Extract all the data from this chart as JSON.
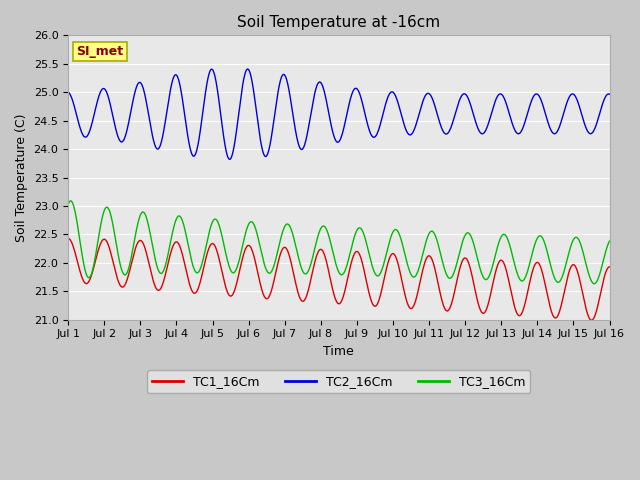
{
  "title": "Soil Temperature at -16cm",
  "xlabel": "Time",
  "ylabel": "Soil Temperature (C)",
  "ylim": [
    21.0,
    26.0
  ],
  "xlim": [
    0,
    15
  ],
  "xtick_labels": [
    "Jul 1",
    "Jul 2",
    "Jul 3",
    "Jul 4",
    "Jul 5",
    "Jul 6",
    "Jul 7",
    "Jul 8",
    "Jul 9",
    "Jul 10",
    "Jul 11",
    "Jul 12",
    "Jul 13",
    "Jul 14",
    "Jul 15",
    "Jul 16"
  ],
  "ytick_values": [
    21.0,
    21.5,
    22.0,
    22.5,
    23.0,
    23.5,
    24.0,
    24.5,
    25.0,
    25.5,
    26.0
  ],
  "ytick_labels": [
    "21.0",
    "21.5",
    "22.0",
    "22.5",
    "23.0",
    "23.5",
    "24.0",
    "24.5",
    "25.0",
    "25.5",
    "26.0"
  ],
  "colors": {
    "TC1": "#dd0000",
    "TC2": "#0000dd",
    "TC3": "#00bb00",
    "plot_bg": "#e8e8e8",
    "fig_bg": "#c8c8c8",
    "grid": "#ffffff",
    "annot_bg": "#ffff88",
    "annot_text": "#880000",
    "annot_edge": "#aaaa00"
  },
  "annotation_text": "SI_met",
  "legend_labels": [
    "TC1_16Cm",
    "TC2_16Cm",
    "TC3_16Cm"
  ]
}
